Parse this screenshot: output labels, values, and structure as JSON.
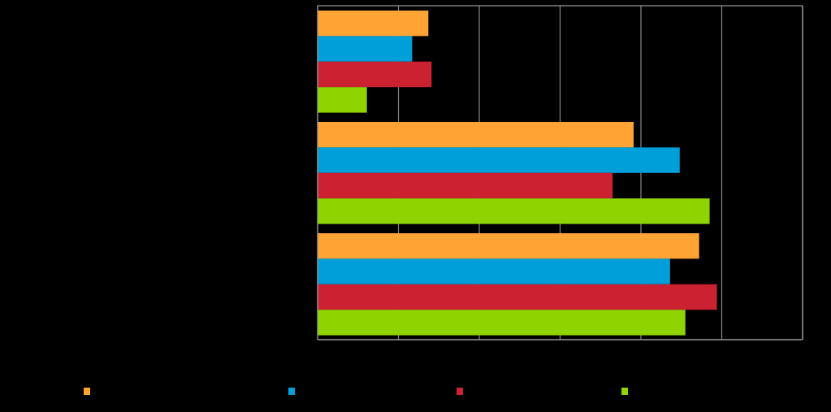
{
  "chart_data": {
    "type": "bar",
    "orientation": "horizontal",
    "categories": [
      "",
      "",
      ""
    ],
    "series": [
      {
        "color": "#ffa335",
        "values": [
          13.7,
          39.1,
          47.2
        ]
      },
      {
        "color": "#009fd9",
        "values": [
          11.7,
          44.8,
          43.6
        ]
      },
      {
        "color": "#cc2131",
        "values": [
          14.1,
          36.5,
          49.4
        ]
      },
      {
        "color": "#8fd400",
        "values": [
          6.1,
          48.5,
          45.5
        ]
      }
    ],
    "xlim": [
      0,
      60
    ],
    "x_ticks": [
      0,
      10,
      20,
      30,
      40,
      50,
      60
    ],
    "grid": true,
    "legend_position": "bottom",
    "colors": {
      "background": "#000000",
      "gridline": "#888888",
      "axis": "#999999"
    }
  }
}
